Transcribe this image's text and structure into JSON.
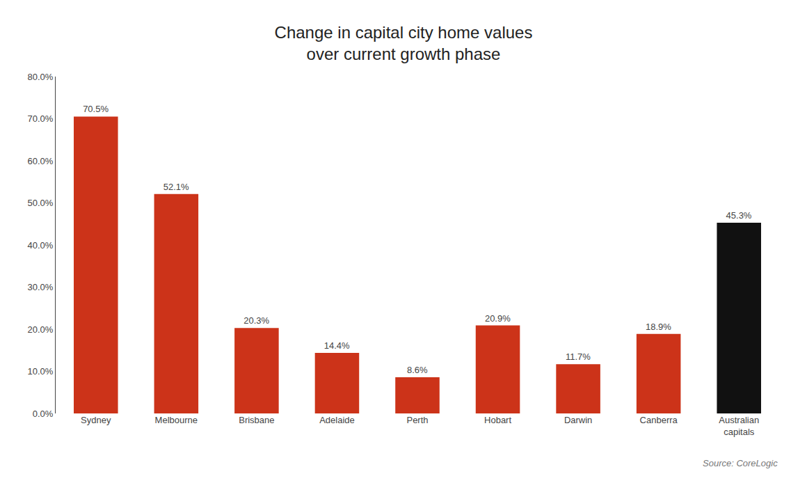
{
  "chart_data": {
    "type": "bar",
    "title": "Change in capital city home values\nover current growth phase",
    "categories": [
      "Sydney",
      "Melbourne",
      "Brisbane",
      "Adelaide",
      "Perth",
      "Hobart",
      "Darwin",
      "Canberra",
      "Australian\ncapitals"
    ],
    "values": [
      70.5,
      52.1,
      20.3,
      14.4,
      8.6,
      20.9,
      11.7,
      18.9,
      45.3
    ],
    "value_labels": [
      "70.5%",
      "52.1%",
      "20.3%",
      "14.4%",
      "8.6%",
      "20.9%",
      "11.7%",
      "18.9%",
      "45.3%"
    ],
    "data_labels": true,
    "colors": [
      "#cc3319",
      "#cc3319",
      "#cc3319",
      "#cc3319",
      "#cc3319",
      "#cc3319",
      "#cc3319",
      "#cc3319",
      "#111111"
    ],
    "ylim": [
      0,
      80
    ],
    "yticks": [
      {
        "value": 0,
        "label": "0.0%"
      },
      {
        "value": 10,
        "label": "10.0%"
      },
      {
        "value": 20,
        "label": "20.0%"
      },
      {
        "value": 30,
        "label": "30.0%"
      },
      {
        "value": 40,
        "label": "40.0%"
      },
      {
        "value": 50,
        "label": "50.0%"
      },
      {
        "value": 60,
        "label": "60.0%"
      },
      {
        "value": 70,
        "label": "70.0%"
      },
      {
        "value": 80,
        "label": "80.0%"
      }
    ],
    "grid": false,
    "annotations": [
      "Source: CoreLogic"
    ]
  }
}
